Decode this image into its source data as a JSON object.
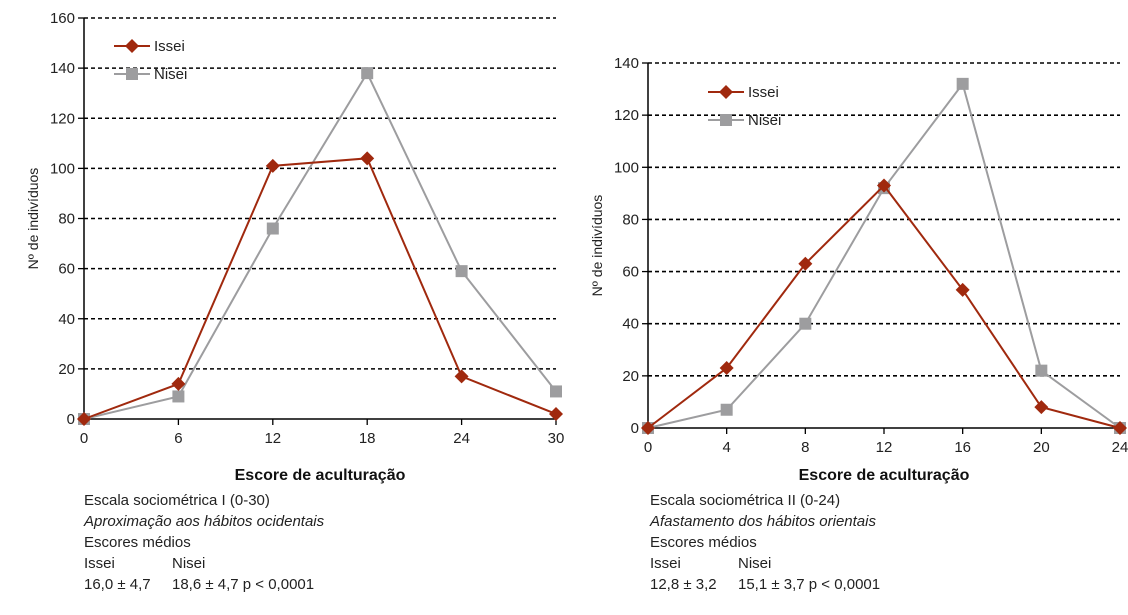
{
  "colors": {
    "issei": "#a0290e",
    "nisei": "#9d9d9f",
    "axis": "#000000"
  },
  "chart_data": [
    {
      "type": "line",
      "x": [
        0,
        6,
        12,
        18,
        24,
        30
      ],
      "series": [
        {
          "name": "Issei",
          "values": [
            0,
            14,
            101,
            104,
            17,
            2
          ],
          "marker": "diamond"
        },
        {
          "name": "Nisei",
          "values": [
            0,
            9,
            76,
            138,
            59,
            11
          ],
          "marker": "square"
        }
      ],
      "xlabel": "Escore de aculturação",
      "ylabel": "Nº de indivíduos",
      "xlim": [
        0,
        30
      ],
      "ylim": [
        0,
        160
      ],
      "xticks": [
        0,
        6,
        12,
        18,
        24,
        30
      ],
      "yticks": [
        0,
        20,
        40,
        60,
        80,
        100,
        120,
        140,
        160
      ],
      "grid": "dashed horizontal",
      "legend": "top-left"
    },
    {
      "type": "line",
      "x": [
        0,
        4,
        8,
        12,
        16,
        20,
        24
      ],
      "series": [
        {
          "name": "Issei",
          "values": [
            0,
            23,
            63,
            93,
            53,
            8,
            0
          ],
          "marker": "diamond"
        },
        {
          "name": "Nisei",
          "values": [
            0,
            7,
            40,
            92,
            132,
            22,
            0
          ],
          "marker": "square"
        }
      ],
      "xlabel": "Escore de aculturação",
      "ylabel": "Nº de indivíduos",
      "xlim": [
        0,
        24
      ],
      "ylim": [
        0,
        140
      ],
      "xticks": [
        0,
        4,
        8,
        12,
        16,
        20,
        24
      ],
      "yticks": [
        0,
        20,
        40,
        60,
        80,
        100,
        120,
        140
      ],
      "grid": "dashed horizontal",
      "legend": "top-left"
    }
  ],
  "notes": [
    {
      "scale": "Escala sociométrica I (0-30)",
      "description": "Aproximação aos hábitos ocidentais",
      "means_title": "Escores médios",
      "col_issei": "Issei",
      "col_nisei": "Nisei",
      "value_issei": "16,0 ± 4,7",
      "value_nisei": "18,6 ± 4,7 p < 0,0001"
    },
    {
      "scale": "Escala sociométrica II (0-24)",
      "description": "Afastamento dos hábitos orientais",
      "means_title": "Escores médios",
      "col_issei": "Issei",
      "col_nisei": "Nisei",
      "value_issei": "12,8 ± 3,2",
      "value_nisei": "15,1 ± 3,7 p < 0,0001"
    }
  ]
}
